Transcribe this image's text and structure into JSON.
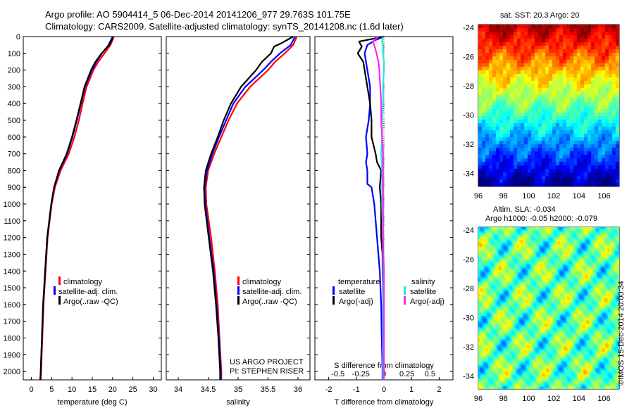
{
  "header": {
    "line1": "Argo profile: AO 5904414_5 06-Dec-2014 20141206_977 29.763S 101.75E",
    "line2": "Climatology: CARS2009. Satellite-adjusted climatology: synTS_20141208.nc (1.6d later)"
  },
  "colors": {
    "climatology": "#ff0000",
    "satellite": "#0000ff",
    "argo": "#000000",
    "sat_s": "#22e5e5",
    "argo_s": "#ff22ff"
  },
  "depth_ticks": [
    "0",
    "100",
    "200",
    "300",
    "400",
    "500",
    "600",
    "700",
    "800",
    "900",
    "1000",
    "1100",
    "1200",
    "1300",
    "1400",
    "1500",
    "1600",
    "1700",
    "1800",
    "1900",
    "2000"
  ],
  "legend": {
    "climatology": "climatology",
    "satellite": "satellite-adj. clim.",
    "argo": "Argo(..raw -QC)"
  },
  "diff_legend": {
    "temperature": "temperature",
    "salinity": "salinity",
    "t_sat": "satellite",
    "t_argo": "Argo(-adj)",
    "s_sat": "satellite",
    "s_argo": "Argo(-adj)"
  },
  "credits": {
    "project": "US ARGO PROJECT",
    "pi": "PI: STEPHEN RISER"
  },
  "maps": {
    "sst_title": "sat. SST: 20.3  Argo: 20",
    "sla_title1": "Altim. SLA: -0.034",
    "sla_title2": "Argo h1000: -0.05 h2000: -0.079",
    "lat_ticks": [
      "-24",
      "-26",
      "-28",
      "-30",
      "-32",
      "-34"
    ],
    "lon_ticks": [
      "96",
      "98",
      "100",
      "102",
      "104",
      "106"
    ]
  },
  "stamp": "©IMOS 15-Dec-2014 20:00:34",
  "chart_data": [
    {
      "type": "line",
      "xlabel": "temperature (deg C)",
      "xlim": [
        -2,
        32
      ],
      "ylim": [
        2050,
        0
      ],
      "x_ticks": [
        "0",
        "5",
        "10",
        "15",
        "20",
        "25",
        "30"
      ],
      "series": [
        {
          "name": "climatology",
          "depth": [
            0,
            50,
            100,
            150,
            200,
            300,
            400,
            500,
            600,
            700,
            800,
            900,
            1000,
            1200,
            1400,
            1600,
            1800,
            2000,
            2050
          ],
          "values": [
            20.3,
            19.5,
            18,
            16.5,
            15.3,
            13.6,
            12.6,
            11.7,
            10.6,
            9.2,
            7.2,
            5.8,
            5.0,
            4.0,
            3.5,
            3.0,
            2.7,
            2.4,
            2.3
          ]
        },
        {
          "name": "satellite-adj. clim.",
          "depth": [
            0,
            50,
            100,
            150,
            200,
            300,
            400,
            500,
            600,
            700,
            800,
            900,
            1000,
            1200,
            1400,
            1600,
            1800,
            2000,
            2050
          ],
          "values": [
            20.0,
            19.0,
            17.4,
            16.0,
            14.9,
            13.2,
            12.2,
            11.2,
            10.1,
            8.8,
            6.9,
            5.6,
            4.9,
            3.9,
            3.4,
            2.9,
            2.6,
            2.3,
            2.2
          ]
        },
        {
          "name": "Argo(..raw -QC)",
          "depth": [
            0,
            50,
            100,
            150,
            200,
            300,
            400,
            500,
            600,
            700,
            800,
            900,
            1000,
            1200,
            1400,
            1600,
            1800,
            2000,
            2050
          ],
          "values": [
            20.2,
            19.2,
            17.3,
            15.8,
            14.7,
            13.1,
            12.1,
            11.1,
            10.0,
            8.7,
            6.8,
            5.6,
            4.9,
            3.9,
            3.4,
            2.9,
            2.6,
            2.3,
            2.2
          ]
        }
      ]
    },
    {
      "type": "line",
      "xlabel": "salinity",
      "xlim": [
        33.8,
        36.2
      ],
      "ylim": [
        2050,
        0
      ],
      "x_ticks": [
        "34",
        "34.5",
        "35",
        "35.5",
        "36"
      ],
      "series": [
        {
          "name": "climatology",
          "depth": [
            0,
            50,
            100,
            150,
            200,
            300,
            400,
            500,
            600,
            700,
            800,
            900,
            1000,
            1200,
            1400,
            1600,
            1800,
            2000,
            2050
          ],
          "values": [
            35.98,
            35.92,
            35.78,
            35.62,
            35.5,
            35.2,
            34.98,
            34.84,
            34.72,
            34.6,
            34.5,
            34.46,
            34.47,
            34.55,
            34.61,
            34.66,
            34.69,
            34.72,
            34.72
          ]
        },
        {
          "name": "satellite-adj. clim.",
          "depth": [
            0,
            50,
            100,
            150,
            200,
            300,
            400,
            500,
            600,
            700,
            800,
            900,
            1000,
            1200,
            1400,
            1600,
            1800,
            2000,
            2050
          ],
          "values": [
            35.95,
            35.88,
            35.7,
            35.55,
            35.42,
            35.12,
            34.92,
            34.8,
            34.68,
            34.57,
            34.48,
            34.44,
            34.45,
            34.52,
            34.59,
            34.64,
            34.68,
            34.71,
            34.71
          ]
        },
        {
          "name": "Argo(..raw -QC)",
          "depth": [
            0,
            40,
            60,
            100,
            150,
            200,
            300,
            400,
            500,
            600,
            700,
            800,
            900,
            1000,
            1200,
            1400,
            1600,
            1800,
            2000,
            2050
          ],
          "values": [
            35.92,
            35.72,
            35.6,
            35.55,
            35.4,
            35.3,
            35.05,
            34.88,
            34.76,
            34.66,
            34.55,
            34.46,
            34.43,
            34.44,
            34.51,
            34.58,
            34.63,
            34.67,
            34.7,
            34.7
          ]
        }
      ]
    },
    {
      "type": "line",
      "xlabel": "T difference from climatology",
      "x2label": "S difference from climatology",
      "xlim": [
        -2.5,
        2.5
      ],
      "ylim": [
        2050,
        0
      ],
      "x_ticks": [
        "-2",
        "-1",
        "0",
        "1",
        "2"
      ],
      "x2_ticks": [
        "-0.5",
        "-0.25",
        "0",
        "0.25",
        "0.5"
      ],
      "series": [
        {
          "name": "temperature satellite",
          "depth": [
            0,
            20,
            50,
            100,
            150,
            200,
            300,
            400,
            500,
            600,
            700,
            750,
            800,
            880,
            900,
            1000,
            1200,
            1400,
            1600,
            1800,
            2000,
            2050
          ],
          "values": [
            0.0,
            -0.3,
            -0.6,
            -0.7,
            -0.65,
            -0.6,
            -0.5,
            -0.5,
            -0.55,
            -0.65,
            -0.6,
            -0.65,
            -0.6,
            -0.6,
            -0.45,
            -0.35,
            -0.25,
            -0.15,
            -0.1,
            -0.08,
            -0.05,
            -0.05
          ]
        },
        {
          "name": "temperature Argo(-adj)",
          "depth": [
            0,
            30,
            60,
            100,
            150,
            200,
            300,
            400,
            500,
            600,
            700,
            750,
            800,
            900,
            1000,
            1200,
            1300,
            1400,
            1600,
            1800,
            2000,
            2050
          ],
          "values": [
            0.0,
            -0.9,
            -0.8,
            -0.95,
            -0.75,
            -0.7,
            -0.6,
            -0.5,
            -0.45,
            -0.45,
            -0.3,
            -0.25,
            -0.1,
            -0.15,
            -0.1,
            -0.1,
            -0.05,
            -0.05,
            -0.03,
            -0.02,
            0.0,
            0.0
          ]
        },
        {
          "name": "salinity satellite",
          "depth": [
            0,
            30,
            60,
            100,
            150,
            200,
            300,
            400,
            500,
            600,
            700,
            800,
            900,
            1000,
            1200,
            1400,
            1600,
            1800,
            2000,
            2050
          ],
          "values": [
            -0.01,
            -0.02,
            -0.01,
            -0.01,
            0.0,
            0.0,
            -0.01,
            -0.01,
            -0.02,
            -0.02,
            -0.03,
            -0.02,
            -0.02,
            -0.02,
            -0.01,
            -0.01,
            -0.01,
            -0.01,
            -0.01,
            -0.01
          ]
        },
        {
          "name": "salinity Argo(-adj)",
          "depth": [
            0,
            30,
            60,
            100,
            150,
            200,
            300,
            400,
            500,
            600,
            700,
            800,
            900,
            1000,
            1200,
            1400,
            1600,
            1800,
            2000,
            2050
          ],
          "values": [
            -0.06,
            -0.12,
            -0.1,
            -0.08,
            -0.06,
            -0.05,
            -0.04,
            -0.03,
            -0.03,
            -0.02,
            -0.01,
            -0.01,
            -0.01,
            -0.01,
            -0.01,
            0.0,
            0.0,
            0.0,
            0.0,
            0.0
          ]
        }
      ]
    }
  ]
}
